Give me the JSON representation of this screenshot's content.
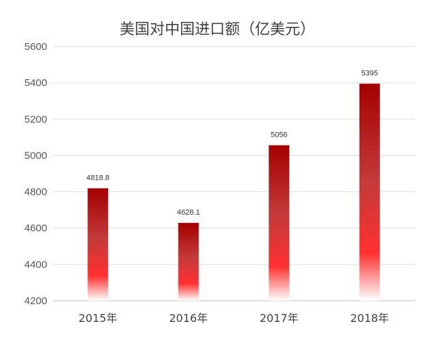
{
  "chart_data": {
    "type": "bar",
    "title": "美国对中国进口额（亿美元）",
    "categories": [
      "2015年",
      "2016年",
      "2017年",
      "2018年"
    ],
    "values": [
      4818.8,
      4628.1,
      5056,
      5395
    ],
    "data_labels": [
      "4818.8",
      "4628.1",
      "5056",
      "5395"
    ],
    "ylim": [
      4200,
      5600
    ],
    "yticks": [
      4200,
      4400,
      4600,
      4800,
      5000,
      5200,
      5400,
      5600
    ],
    "grid": true,
    "legend": "none",
    "colors": {
      "bar_top": "#a50000",
      "bar_mid": "#ff3030",
      "bar_bottom": "#ffffff",
      "grid": "#dcdcdc"
    }
  }
}
